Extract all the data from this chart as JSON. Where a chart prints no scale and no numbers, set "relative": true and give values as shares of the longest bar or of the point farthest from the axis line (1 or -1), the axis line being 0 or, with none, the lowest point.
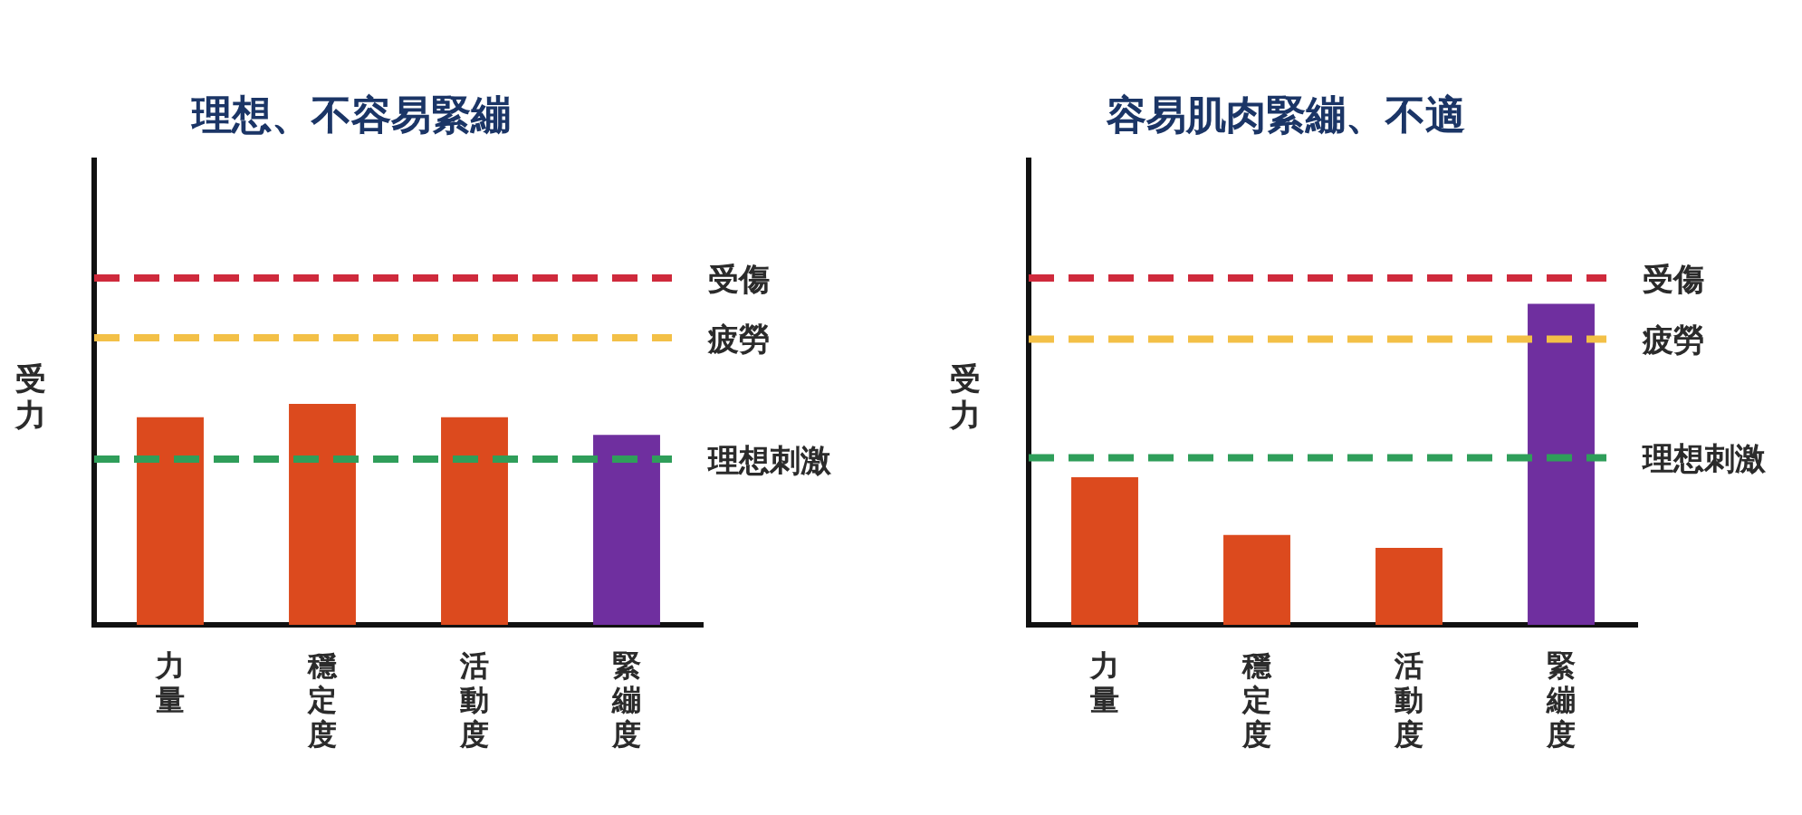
{
  "chart_data": [
    {
      "type": "bar",
      "title": "理想、不容易緊繃",
      "ylabel": "受力",
      "categories": [
        "力量",
        "穩定度",
        "活動度",
        "緊繃度"
      ],
      "values": [
        0.94,
        1,
        0.94,
        0.86
      ],
      "colors": [
        "#dc4a1e",
        "#dc4a1e",
        "#dc4a1e",
        "#6f2f9f"
      ],
      "relative": true,
      "ref_lines": [
        {
          "axis": "y",
          "value": 1.57,
          "label": "受傷",
          "color": "#cf2a3c",
          "line_style": "dashed"
        },
        {
          "axis": "y",
          "value": 1.3,
          "label": "疲勞",
          "color": "#f3c047",
          "line_style": "dashed"
        },
        {
          "axis": "y",
          "value": 0.75,
          "label": "理想刺激",
          "color": "#2f9e5a",
          "line_style": "dashed"
        }
      ]
    },
    {
      "type": "bar",
      "title": "容易肌肉緊繃、不適",
      "ylabel": "受力",
      "categories": [
        "力量",
        "穩定度",
        "活動度",
        "緊繃度"
      ],
      "values": [
        0.46,
        0.28,
        0.24,
        1
      ],
      "colors": [
        "#dc4a1e",
        "#dc4a1e",
        "#dc4a1e",
        "#6f2f9f"
      ],
      "relative": true,
      "ref_lines": [
        {
          "axis": "y",
          "value": 1.08,
          "label": "受傷",
          "color": "#cf2a3c",
          "line_style": "dashed"
        },
        {
          "axis": "y",
          "value": 0.89,
          "label": "疲勞",
          "color": "#f3c047",
          "line_style": "dashed"
        },
        {
          "axis": "y",
          "value": 0.52,
          "label": "理想刺激",
          "color": "#2f9e5a",
          "line_style": "dashed"
        }
      ]
    }
  ]
}
